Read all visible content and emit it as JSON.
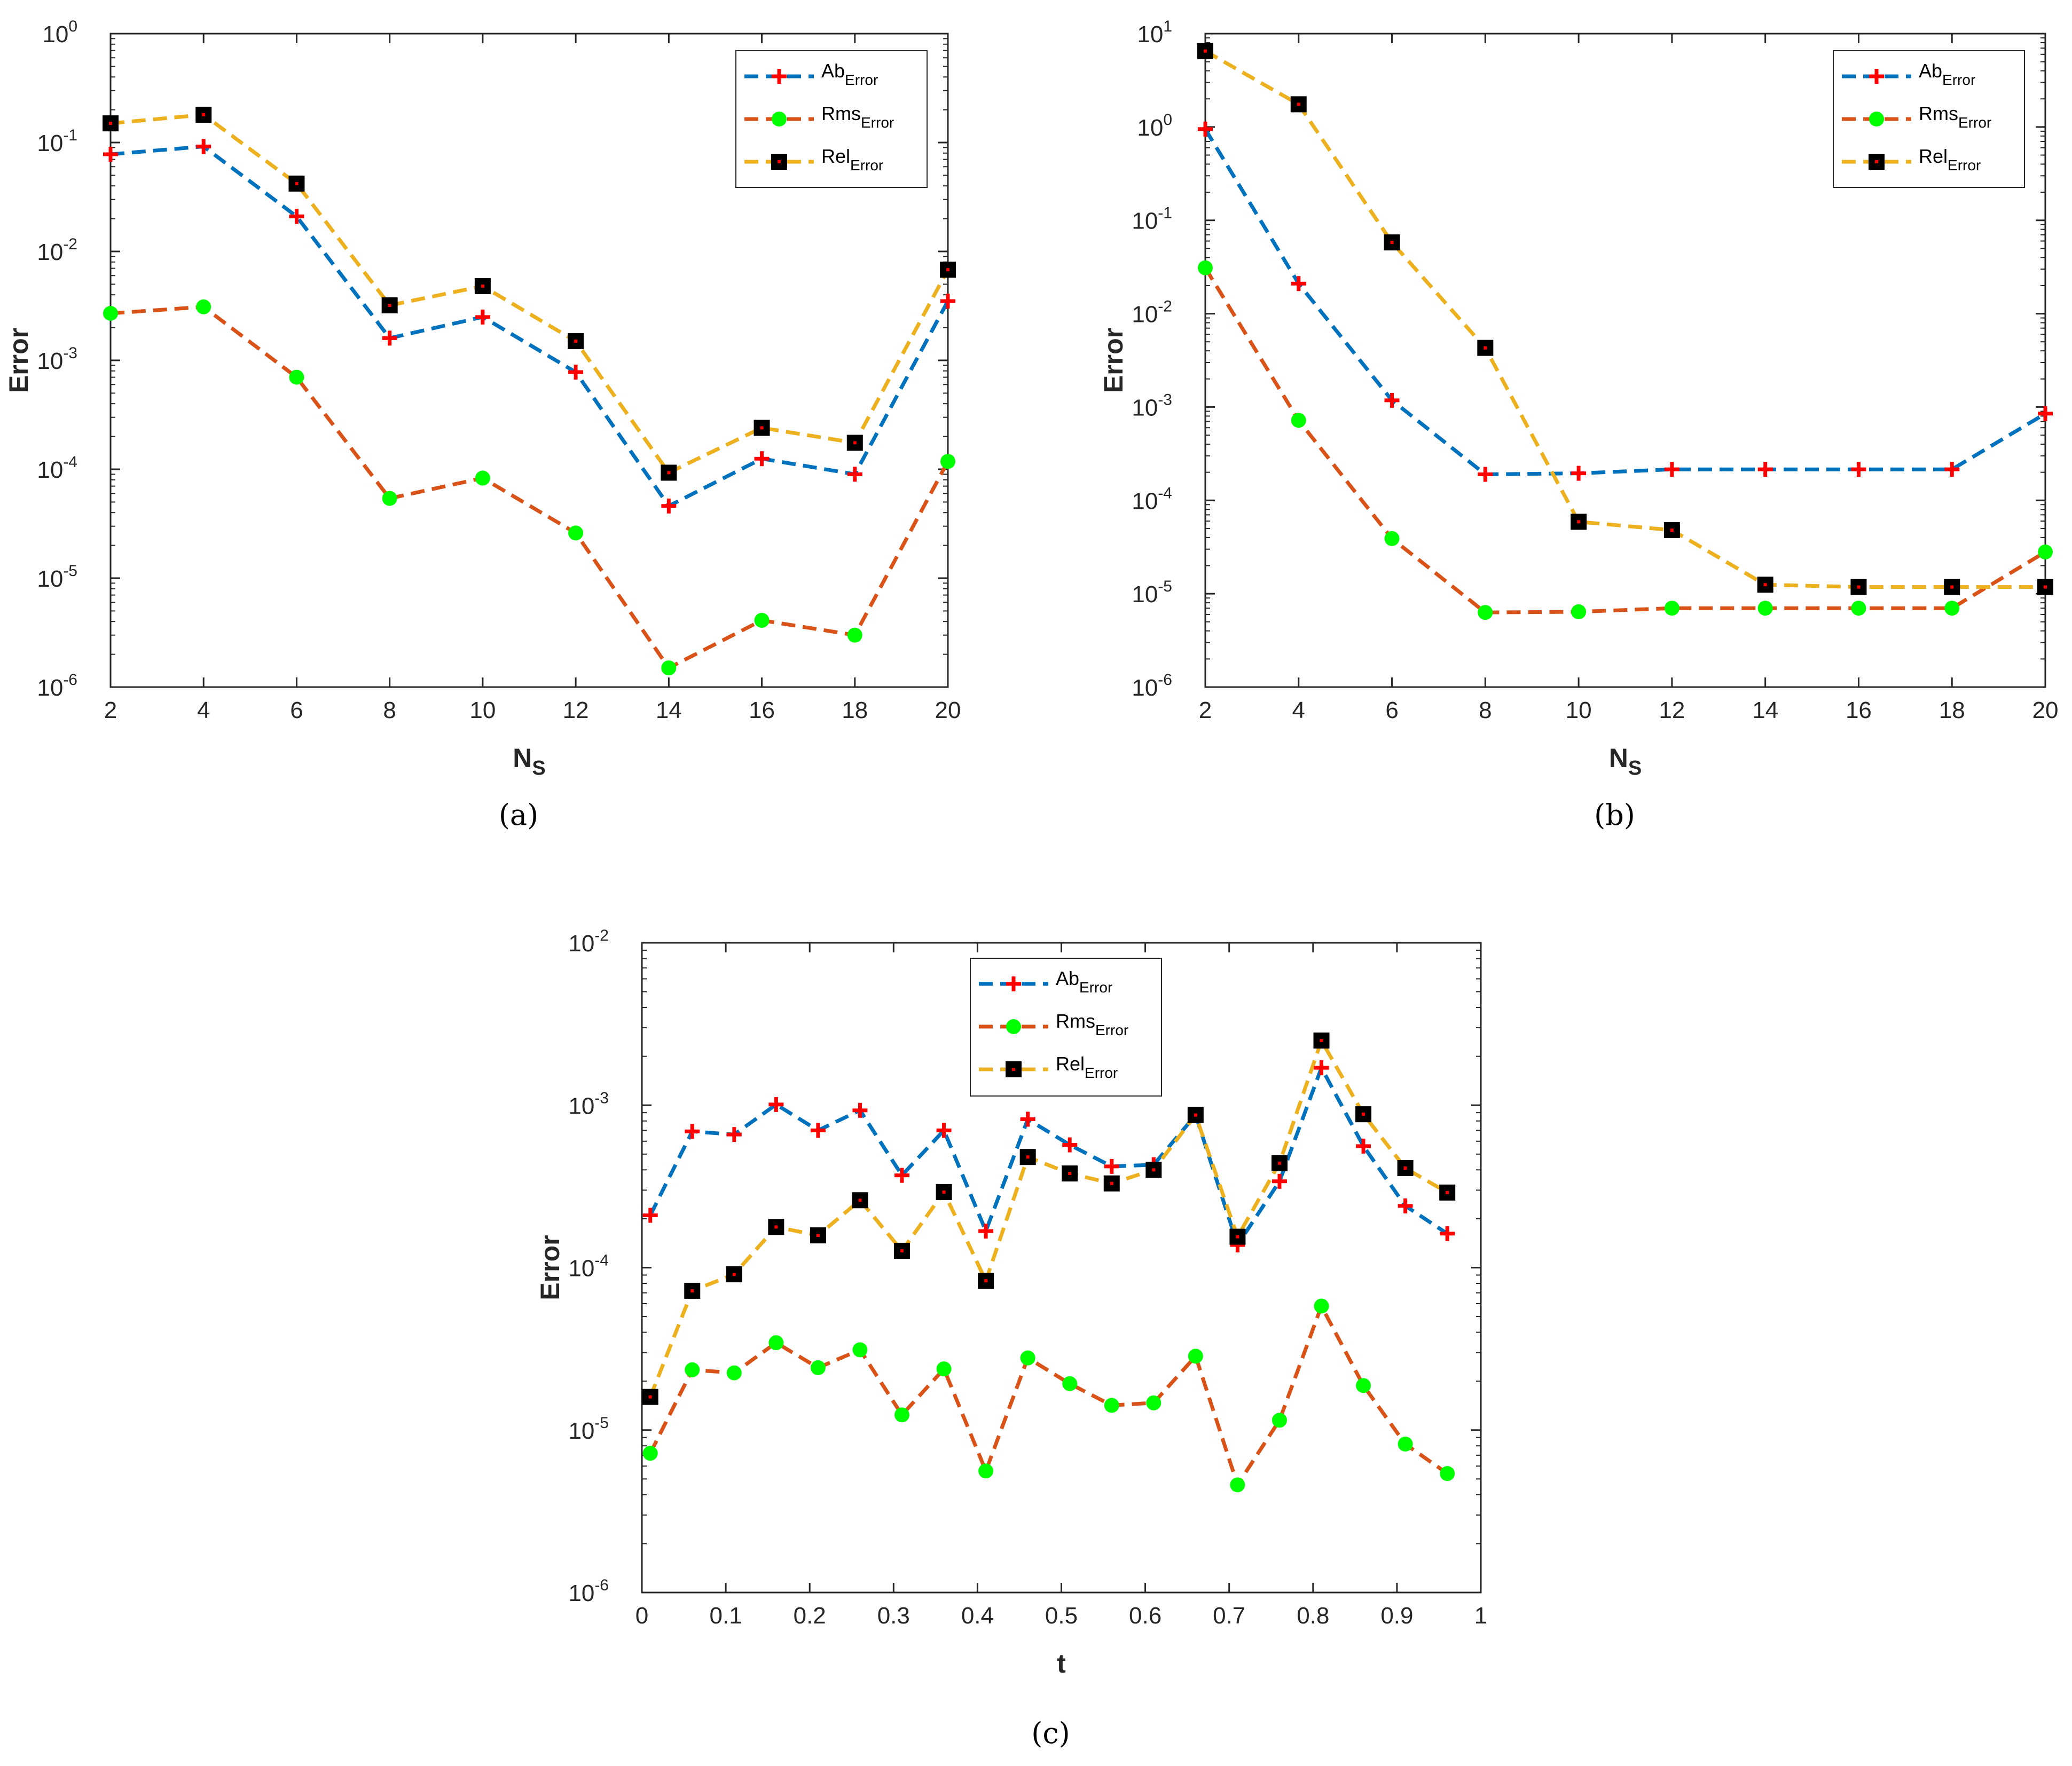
{
  "colors": {
    "ab_line": "#0072BD",
    "rms_line": "#D95319",
    "rel_line": "#EDB120",
    "plus_marker": "#FF0000",
    "circle_marker": "#00FF00",
    "square_marker": "#000000",
    "square_dot": "#FF0000",
    "axis": "#262626"
  },
  "chart_data": [
    {
      "id": "a",
      "type": "line",
      "caption": "(a)",
      "xlabel": "N",
      "xlabel_sub": "S",
      "ylabel": "Error",
      "yscale": "log",
      "xlim": [
        2,
        20
      ],
      "ylim_exp": [
        -6,
        0
      ],
      "xticks": [
        "2",
        "4",
        "6",
        "8",
        "10",
        "12",
        "14",
        "16",
        "18",
        "20"
      ],
      "yticks": [
        {
          "base": "10",
          "exp": "-6"
        },
        {
          "base": "10",
          "exp": "-5"
        },
        {
          "base": "10",
          "exp": "-4"
        },
        {
          "base": "10",
          "exp": "-3"
        },
        {
          "base": "10",
          "exp": "-2"
        },
        {
          "base": "10",
          "exp": "-1"
        },
        {
          "base": "10",
          "exp": "0"
        }
      ],
      "x": [
        2,
        4,
        6,
        8,
        10,
        12,
        14,
        16,
        18,
        20
      ],
      "legend_position": "top-right",
      "series": [
        {
          "name": "Ab",
          "name_sub": "Error",
          "marker": "plus",
          "line_color": "#0072BD",
          "values": [
            0.078,
            0.092,
            0.021,
            0.0016,
            0.0025,
            0.00078,
            4.6e-05,
            0.000125,
            9e-05,
            0.0035
          ]
        },
        {
          "name": "Rms",
          "name_sub": "Error",
          "marker": "circle",
          "line_color": "#D95319",
          "values": [
            0.0027,
            0.0031,
            0.0007,
            5.4e-05,
            8.3e-05,
            2.6e-05,
            1.5e-06,
            4.1e-06,
            3e-06,
            0.000118
          ]
        },
        {
          "name": "Rel",
          "name_sub": "Error",
          "marker": "square",
          "line_color": "#EDB120",
          "values": [
            0.15,
            0.18,
            0.042,
            0.0032,
            0.0048,
            0.0015,
            9.3e-05,
            0.00024,
            0.000175,
            0.0068
          ]
        }
      ]
    },
    {
      "id": "b",
      "type": "line",
      "caption": "(b)",
      "xlabel": "N",
      "xlabel_sub": "S",
      "ylabel": "Error",
      "yscale": "log",
      "xlim": [
        2,
        20
      ],
      "ylim_exp": [
        -6,
        1
      ],
      "xticks": [
        "2",
        "4",
        "6",
        "8",
        "10",
        "12",
        "14",
        "16",
        "18",
        "20"
      ],
      "yticks": [
        {
          "base": "10",
          "exp": "-6"
        },
        {
          "base": "10",
          "exp": "-5"
        },
        {
          "base": "10",
          "exp": "-4"
        },
        {
          "base": "10",
          "exp": "-3"
        },
        {
          "base": "10",
          "exp": "-2"
        },
        {
          "base": "10",
          "exp": "-1"
        },
        {
          "base": "10",
          "exp": "0"
        },
        {
          "base": "10",
          "exp": "1"
        }
      ],
      "x": [
        2,
        4,
        6,
        8,
        10,
        12,
        14,
        16,
        18,
        20
      ],
      "legend_position": "top-right",
      "series": [
        {
          "name": "Ab",
          "name_sub": "Error",
          "marker": "plus",
          "line_color": "#0072BD",
          "values": [
            0.95,
            0.021,
            0.00118,
            0.00019,
            0.000195,
            0.000215,
            0.000215,
            0.000215,
            0.000215,
            0.00085
          ]
        },
        {
          "name": "Rms",
          "name_sub": "Error",
          "marker": "circle",
          "line_color": "#D95319",
          "values": [
            0.031,
            0.00072,
            3.9e-05,
            6.3e-06,
            6.4e-06,
            7e-06,
            7e-06,
            7e-06,
            7e-06,
            2.8e-05
          ]
        },
        {
          "name": "Rel",
          "name_sub": "Error",
          "marker": "square",
          "line_color": "#EDB120",
          "values": [
            6.5,
            1.75,
            0.058,
            0.0043,
            5.9e-05,
            4.8e-05,
            1.25e-05,
            1.18e-05,
            1.18e-05,
            1.18e-05
          ]
        }
      ]
    },
    {
      "id": "c",
      "type": "line",
      "caption": "(c)",
      "xlabel": "t",
      "xlabel_sub": "",
      "ylabel": "Error",
      "yscale": "log",
      "xlim": [
        0,
        1
      ],
      "ylim_exp": [
        -6,
        -2
      ],
      "xticks": [
        "0",
        "0.1",
        "0.2",
        "0.3",
        "0.4",
        "0.5",
        "0.6",
        "0.7",
        "0.8",
        "0.9",
        "1"
      ],
      "yticks": [
        {
          "base": "10",
          "exp": "-6"
        },
        {
          "base": "10",
          "exp": "-5"
        },
        {
          "base": "10",
          "exp": "-4"
        },
        {
          "base": "10",
          "exp": "-3"
        },
        {
          "base": "10",
          "exp": "-2"
        }
      ],
      "x": [
        0.01,
        0.06,
        0.11,
        0.16,
        0.21,
        0.26,
        0.31,
        0.36,
        0.41,
        0.46,
        0.51,
        0.56,
        0.61,
        0.66,
        0.71,
        0.76,
        0.81,
        0.86,
        0.91,
        0.96
      ],
      "legend_position": "top-center",
      "series": [
        {
          "name": "Ab",
          "name_sub": "Error",
          "marker": "plus",
          "line_color": "#0072BD",
          "values": [
            0.00021,
            0.00069,
            0.00066,
            0.00101,
            0.0007,
            0.00093,
            0.00037,
            0.0007,
            0.000168,
            0.00082,
            0.00057,
            0.00042,
            0.00043,
            0.00087,
            0.000138,
            0.00034,
            0.0017,
            0.00056,
            0.00024,
            0.000162
          ]
        },
        {
          "name": "Rms",
          "name_sub": "Error",
          "marker": "circle",
          "line_color": "#D95319",
          "values": [
            7.2e-06,
            2.35e-05,
            2.25e-05,
            3.45e-05,
            2.42e-05,
            3.12e-05,
            1.24e-05,
            2.38e-05,
            5.6e-06,
            2.78e-05,
            1.93e-05,
            1.42e-05,
            1.47e-05,
            2.85e-05,
            4.6e-06,
            1.15e-05,
            5.8e-05,
            1.88e-05,
            8.2e-06,
            5.4e-06
          ]
        },
        {
          "name": "Rel",
          "name_sub": "Error",
          "marker": "square",
          "line_color": "#EDB120",
          "values": [
            1.6e-05,
            7.2e-05,
            9.1e-05,
            0.000178,
            0.000158,
            0.00026,
            0.000127,
            0.000292,
            8.3e-05,
            0.00048,
            0.00038,
            0.00033,
            0.0004,
            0.00087,
            0.000155,
            0.00044,
            0.0025,
            0.00088,
            0.00041,
            0.00029
          ]
        }
      ]
    }
  ]
}
